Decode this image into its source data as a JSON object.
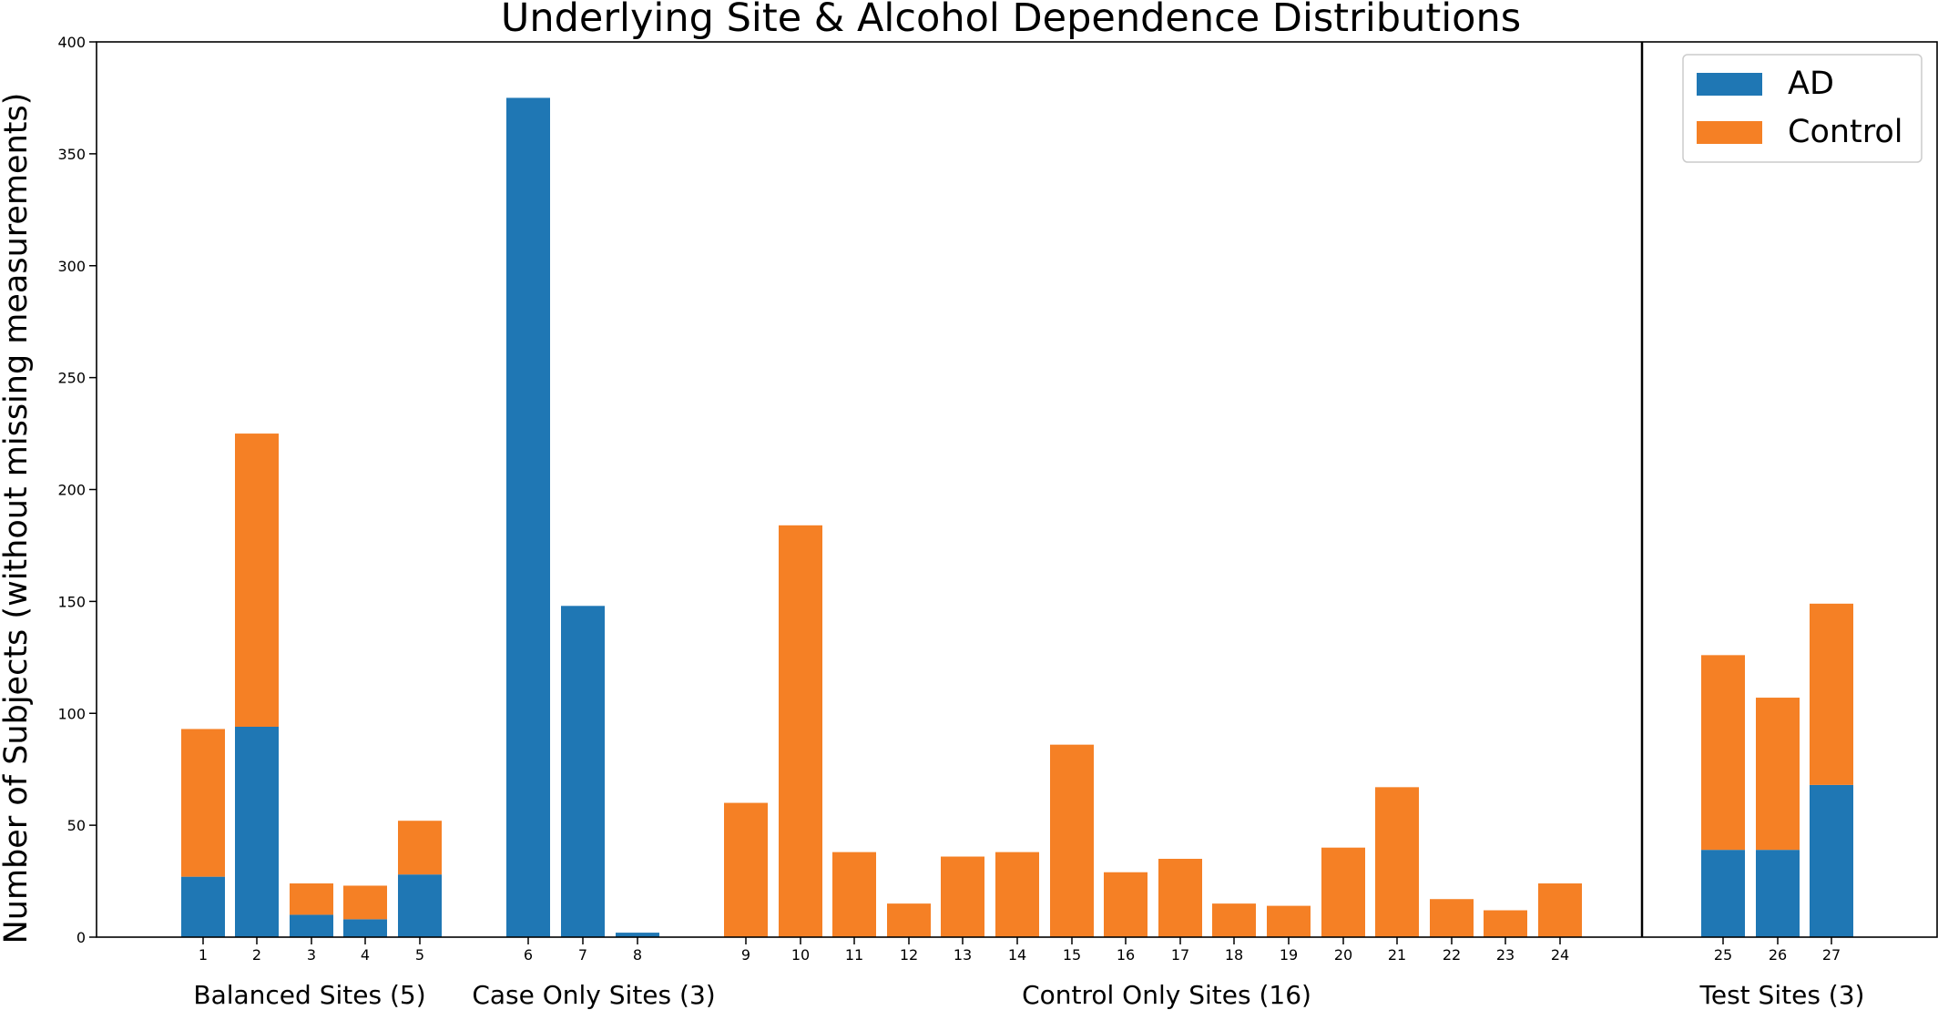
{
  "chart_data": {
    "type": "bar",
    "stacked": true,
    "title": "Underlying Site & Alcohol Dependence Distributions",
    "xlabel": "",
    "ylabel": "Number of Subjects (without missing measurements)",
    "ylim": [
      0,
      400
    ],
    "yticks": [
      0,
      50,
      100,
      150,
      200,
      250,
      300,
      350,
      400
    ],
    "grid": false,
    "legend_position": "top-right",
    "categories": [
      "1",
      "2",
      "3",
      "4",
      "5",
      "6",
      "7",
      "8",
      "9",
      "10",
      "11",
      "12",
      "13",
      "14",
      "15",
      "16",
      "17",
      "18",
      "19",
      "20",
      "21",
      "22",
      "23",
      "24",
      "25",
      "26",
      "27"
    ],
    "series": [
      {
        "name": "AD",
        "color": "#1f77b4",
        "values": [
          27,
          94,
          10,
          8,
          28,
          375,
          148,
          2,
          0,
          0,
          0,
          0,
          0,
          0,
          0,
          0,
          0,
          0,
          0,
          0,
          0,
          0,
          0,
          0,
          39,
          39,
          68
        ]
      },
      {
        "name": "Control",
        "color": "#f58025",
        "values": [
          66,
          131,
          14,
          15,
          24,
          0,
          0,
          0,
          60,
          184,
          38,
          15,
          36,
          38,
          86,
          29,
          35,
          15,
          14,
          40,
          67,
          17,
          12,
          24,
          87,
          68,
          81
        ]
      }
    ],
    "groups": [
      {
        "label": "Balanced Sites (5)",
        "sites": [
          "1",
          "2",
          "3",
          "4",
          "5"
        ]
      },
      {
        "label": "Case Only Sites (3)",
        "sites": [
          "6",
          "7",
          "8"
        ]
      },
      {
        "label": "Control Only Sites (16)",
        "sites": [
          "9",
          "10",
          "11",
          "12",
          "13",
          "14",
          "15",
          "16",
          "17",
          "18",
          "19",
          "20",
          "21",
          "22",
          "23",
          "24"
        ]
      },
      {
        "label": "Test Sites (3)",
        "sites": [
          "25",
          "26",
          "27"
        ]
      }
    ]
  }
}
